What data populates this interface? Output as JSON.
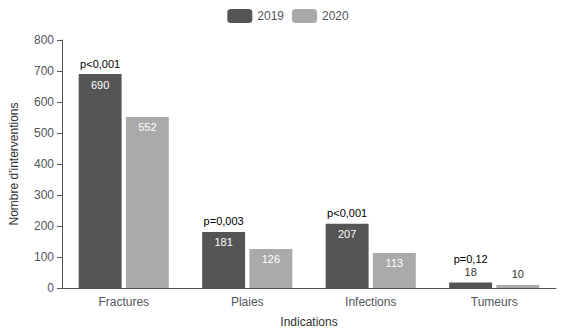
{
  "chart_data": {
    "type": "bar",
    "categories": [
      "Fractures",
      "Plaies",
      "Infections",
      "Tumeurs"
    ],
    "series": [
      {
        "name": "2019",
        "color": "#555555",
        "values": [
          690,
          181,
          207,
          18
        ]
      },
      {
        "name": "2020",
        "color": "#aaaaaa",
        "values": [
          552,
          126,
          113,
          10
        ]
      }
    ],
    "xlabel": "Indications",
    "ylabel": "Nombre d'interventions",
    "ylim": [
      0,
      800
    ],
    "yticks": [
      0,
      100,
      200,
      300,
      400,
      500,
      600,
      700,
      800
    ],
    "annotations": [
      "p<0,001",
      "p=0,003",
      "p<0,001",
      "p=0,12"
    ],
    "data_labels": true,
    "legend": "top",
    "grid": false
  }
}
